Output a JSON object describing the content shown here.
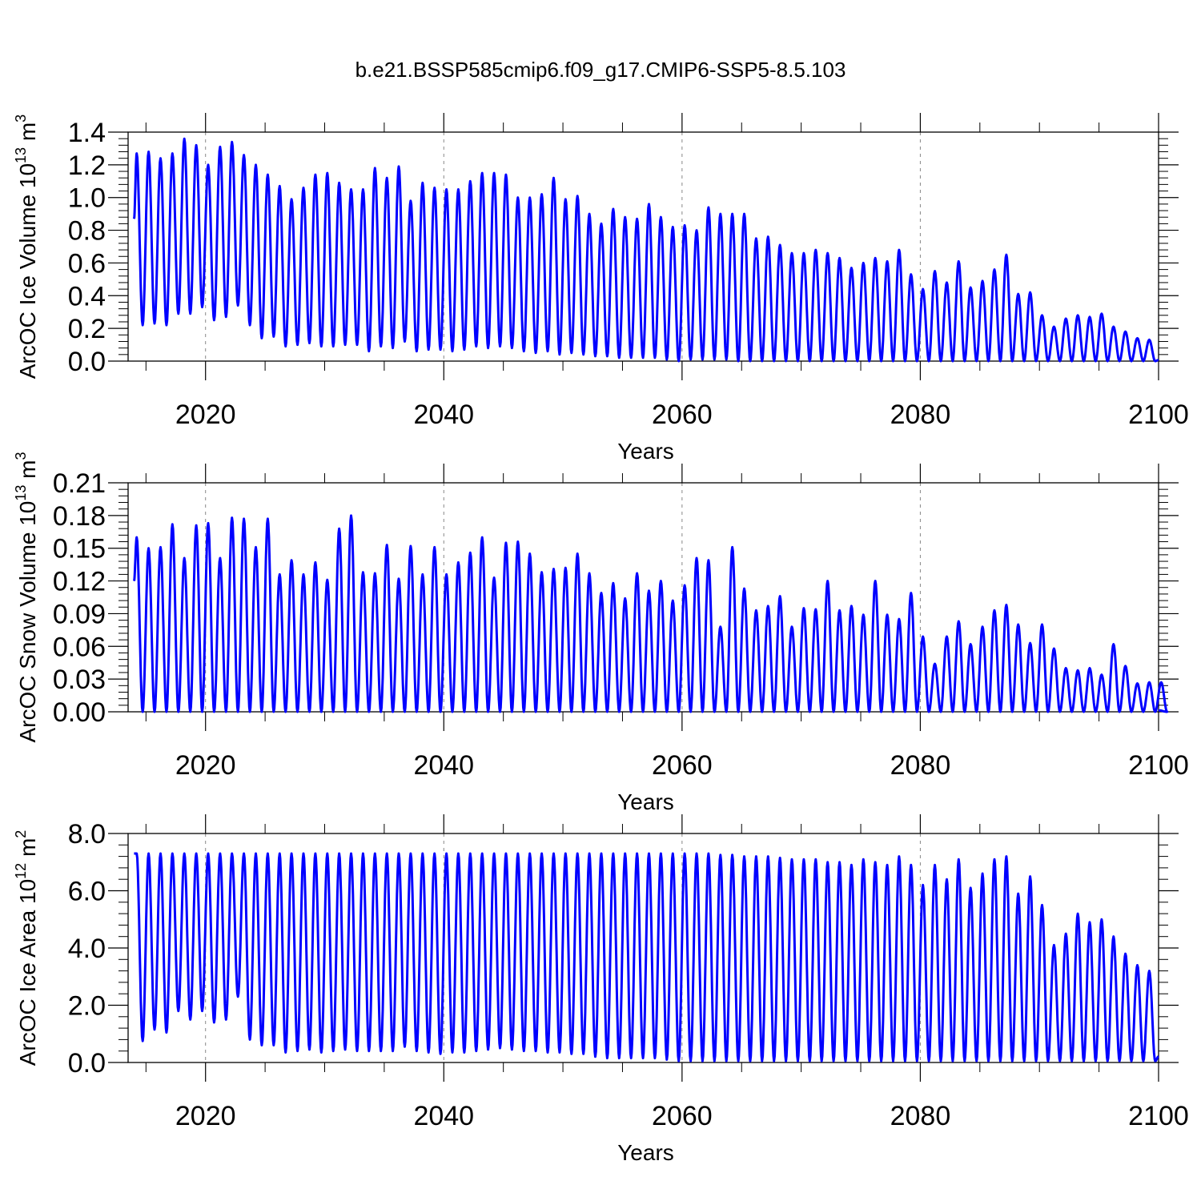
{
  "title": "b.e21.BSSP585cmip6.f09_g17.CMIP6-SSP5-8.5.103",
  "colors": {
    "series": "#0000ff",
    "frame": "#000000",
    "grid": "#888888"
  },
  "chart_data": [
    {
      "type": "line",
      "ylabel": "ArcOC Ice Volume 10",
      "ylabel_exp": "13",
      "ylabel_unit": " m",
      "ylabel_unit_exp": "3",
      "xlabel": "Years",
      "xlim": [
        2013.5,
        2100
      ],
      "ylim": [
        0,
        1.4
      ],
      "xticks": [
        "2020",
        "2040",
        "2060",
        "2080",
        "2100"
      ],
      "xtick_values": [
        2020,
        2040,
        2060,
        2080,
        2100
      ],
      "yticks": [
        "0.0",
        "0.2",
        "0.4",
        "0.6",
        "0.8",
        "1.0",
        "1.2",
        "1.4"
      ],
      "ytick_values": [
        0,
        0.2,
        0.4,
        0.6,
        0.8,
        1.0,
        1.2,
        1.4
      ],
      "grid_x": [
        2020,
        2040,
        2060,
        2080
      ],
      "series": [
        {
          "name": "ArcOC Ice Volume",
          "start_year": 2014,
          "start_value": 0.87,
          "annual_max": [
            1.27,
            1.28,
            1.24,
            1.27,
            1.36,
            1.32,
            1.2,
            1.31,
            1.34,
            1.26,
            1.2,
            1.14,
            1.07,
            0.99,
            1.06,
            1.14,
            1.15,
            1.09,
            1.05,
            1.05,
            1.18,
            1.12,
            1.19,
            0.98,
            1.09,
            1.06,
            1.05,
            1.05,
            1.1,
            1.15,
            1.15,
            1.14,
            1.0,
            1.0,
            1.02,
            1.12,
            0.99,
            1.01,
            0.9,
            0.84,
            0.93,
            0.88,
            0.87,
            0.96,
            0.88,
            0.82,
            0.83,
            0.8,
            0.94,
            0.9,
            0.9,
            0.9,
            0.75,
            0.76,
            0.71,
            0.66,
            0.66,
            0.68,
            0.66,
            0.63,
            0.57,
            0.6,
            0.63,
            0.61,
            0.68,
            0.53,
            0.44,
            0.55,
            0.48,
            0.61,
            0.45,
            0.49,
            0.56,
            0.65,
            0.41,
            0.42,
            0.28,
            0.21,
            0.26,
            0.28,
            0.27,
            0.29,
            0.21,
            0.18,
            0.14,
            0.13
          ],
          "annual_min": [
            0.22,
            0.23,
            0.22,
            0.29,
            0.29,
            0.33,
            0.25,
            0.27,
            0.34,
            0.22,
            0.14,
            0.15,
            0.09,
            0.1,
            0.11,
            0.09,
            0.09,
            0.1,
            0.1,
            0.06,
            0.09,
            0.08,
            0.12,
            0.06,
            0.07,
            0.07,
            0.06,
            0.07,
            0.09,
            0.08,
            0.09,
            0.08,
            0.06,
            0.05,
            0.06,
            0.04,
            0.05,
            0.04,
            0.03,
            0.03,
            0.02,
            0.02,
            0.02,
            0.02,
            0.01,
            0.0,
            0.01,
            0.01,
            0.01,
            0.01,
            0.0,
            0.0,
            0.0,
            0.0,
            0.0,
            0.0,
            0.0,
            0.0,
            0.0,
            0.0,
            0.0,
            0.0,
            0.0,
            0.0,
            0.0,
            0.0,
            0.0,
            0.0,
            0.0,
            0.0,
            0.0,
            0.0,
            0.0,
            0.0,
            0.0,
            0.0,
            0.0,
            0.0,
            0.0,
            0.0,
            0.0,
            0.0,
            0.0,
            0.0,
            0.0,
            0.0
          ]
        }
      ]
    },
    {
      "type": "line",
      "ylabel": "ArcOC Snow Volume 10",
      "ylabel_exp": "13",
      "ylabel_unit": " m",
      "ylabel_unit_exp": "3",
      "xlabel": "Years",
      "xlim": [
        2013.5,
        2100
      ],
      "ylim": [
        0,
        0.21
      ],
      "xticks": [
        "2020",
        "2040",
        "2060",
        "2080",
        "2100"
      ],
      "xtick_values": [
        2020,
        2040,
        2060,
        2080,
        2100
      ],
      "yticks": [
        "0.00",
        "0.03",
        "0.06",
        "0.09",
        "0.12",
        "0.15",
        "0.18",
        "0.21"
      ],
      "ytick_values": [
        0,
        0.03,
        0.06,
        0.09,
        0.12,
        0.15,
        0.18,
        0.21
      ],
      "grid_x": [
        2020,
        2040,
        2060,
        2080
      ],
      "series": [
        {
          "name": "ArcOC Snow Volume",
          "start_year": 2014,
          "start_value": 0.12,
          "annual_max": [
            0.16,
            0.15,
            0.151,
            0.172,
            0.141,
            0.171,
            0.173,
            0.141,
            0.178,
            0.177,
            0.151,
            0.177,
            0.126,
            0.139,
            0.126,
            0.137,
            0.121,
            0.168,
            0.18,
            0.128,
            0.127,
            0.153,
            0.122,
            0.152,
            0.126,
            0.151,
            0.126,
            0.137,
            0.146,
            0.16,
            0.123,
            0.155,
            0.156,
            0.145,
            0.128,
            0.131,
            0.132,
            0.145,
            0.127,
            0.109,
            0.118,
            0.104,
            0.127,
            0.111,
            0.12,
            0.102,
            0.116,
            0.141,
            0.139,
            0.078,
            0.151,
            0.113,
            0.093,
            0.097,
            0.106,
            0.078,
            0.095,
            0.094,
            0.12,
            0.093,
            0.097,
            0.089,
            0.12,
            0.089,
            0.085,
            0.109,
            0.069,
            0.044,
            0.069,
            0.083,
            0.062,
            0.078,
            0.093,
            0.098,
            0.08,
            0.063,
            0.08,
            0.058,
            0.04,
            0.038,
            0.04,
            0.034,
            0.062,
            0.042,
            0.026,
            0.027,
            0.027
          ],
          "annual_min": [
            0,
            0,
            0,
            0,
            0,
            0,
            0,
            0,
            0,
            0,
            0,
            0,
            0,
            0,
            0,
            0,
            0,
            0,
            0,
            0,
            0,
            0,
            0,
            0,
            0,
            0,
            0,
            0,
            0,
            0,
            0,
            0,
            0,
            0,
            0,
            0,
            0,
            0,
            0,
            0,
            0,
            0,
            0,
            0,
            0,
            0,
            0,
            0,
            0,
            0,
            0,
            0,
            0,
            0,
            0,
            0,
            0,
            0,
            0,
            0,
            0,
            0,
            0,
            0,
            0,
            0,
            0,
            0,
            0,
            0,
            0,
            0,
            0,
            0,
            0,
            0,
            0,
            0,
            0,
            0,
            0,
            0,
            0,
            0,
            0,
            0,
            0
          ]
        }
      ]
    },
    {
      "type": "line",
      "ylabel": "ArcOC Ice Area 10",
      "ylabel_exp": "12",
      "ylabel_unit": " m",
      "ylabel_unit_exp": "2",
      "xlabel": "Years",
      "xlim": [
        2013.5,
        2100
      ],
      "ylim": [
        0,
        8.0
      ],
      "xticks": [
        "2020",
        "2040",
        "2060",
        "2080",
        "2100"
      ],
      "xtick_values": [
        2020,
        2040,
        2060,
        2080,
        2100
      ],
      "yticks": [
        "0.0",
        "2.0",
        "4.0",
        "6.0",
        "8.0"
      ],
      "ytick_values": [
        0,
        2,
        4,
        6,
        8
      ],
      "grid_x": [
        2020,
        2040,
        2060,
        2080
      ],
      "series": [
        {
          "name": "ArcOC Ice Area",
          "start_year": 2014,
          "start_value": 7.3,
          "annual_max": [
            7.3,
            7.3,
            7.3,
            7.3,
            7.3,
            7.3,
            7.3,
            7.3,
            7.3,
            7.3,
            7.3,
            7.3,
            7.3,
            7.3,
            7.3,
            7.3,
            7.3,
            7.3,
            7.3,
            7.3,
            7.3,
            7.3,
            7.3,
            7.3,
            7.3,
            7.3,
            7.3,
            7.3,
            7.3,
            7.3,
            7.3,
            7.3,
            7.3,
            7.3,
            7.3,
            7.3,
            7.3,
            7.3,
            7.3,
            7.3,
            7.3,
            7.3,
            7.3,
            7.3,
            7.3,
            7.3,
            7.3,
            7.3,
            7.3,
            7.25,
            7.25,
            7.2,
            7.2,
            7.2,
            7.15,
            7.1,
            7.1,
            7.1,
            7.0,
            7.0,
            6.9,
            7.1,
            7.0,
            6.9,
            7.2,
            6.9,
            6.2,
            6.9,
            6.4,
            7.1,
            6.1,
            6.6,
            7.1,
            7.2,
            5.9,
            6.5,
            5.5,
            4.1,
            4.5,
            5.2,
            4.9,
            5.0,
            4.4,
            3.8,
            3.4,
            3.2
          ],
          "annual_min": [
            0.75,
            1.15,
            1.05,
            1.8,
            1.5,
            1.8,
            1.4,
            1.5,
            2.3,
            0.8,
            0.6,
            0.6,
            0.35,
            0.4,
            0.45,
            0.35,
            0.4,
            0.45,
            0.4,
            0.4,
            0.4,
            0.4,
            0.55,
            0.4,
            0.35,
            0.3,
            0.35,
            0.35,
            0.4,
            0.45,
            0.5,
            0.45,
            0.4,
            0.4,
            0.35,
            0.35,
            0.3,
            0.3,
            0.2,
            0.15,
            0.15,
            0.15,
            0.15,
            0.15,
            0.1,
            0.05,
            0.05,
            0.05,
            0.05,
            0.05,
            0.05,
            0.05,
            0.05,
            0.05,
            0.05,
            0.05,
            0.05,
            0.05,
            0.05,
            0.05,
            0.05,
            0.05,
            0.05,
            0.05,
            0.05,
            0.05,
            0.05,
            0.05,
            0.05,
            0.05,
            0.05,
            0.05,
            0.05,
            0.05,
            0.05,
            0.05,
            0.05,
            0.05,
            0.05,
            0.05,
            0.05,
            0.05,
            0.05,
            0.05,
            0.05,
            0.05
          ]
        }
      ]
    }
  ]
}
